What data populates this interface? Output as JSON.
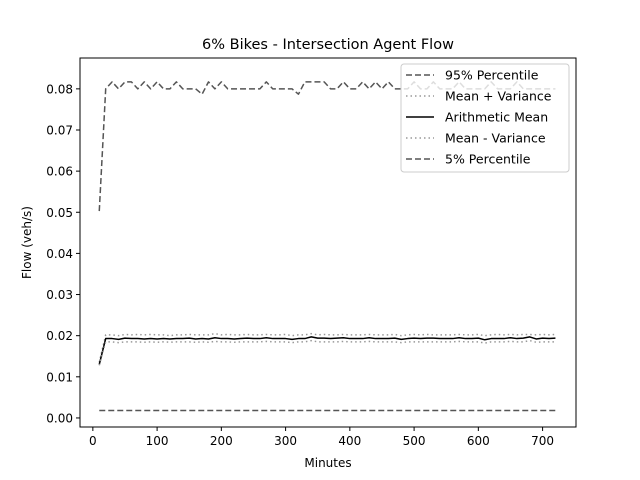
{
  "chart_data": {
    "type": "line",
    "title": "6% Bikes - Intersection Agent Flow",
    "xlabel": "Minutes",
    "ylabel": "Flow (veh/s)",
    "xlim": [
      -20,
      752
    ],
    "ylim": [
      -0.0022,
      0.0875
    ],
    "xticks": [
      0,
      100,
      200,
      300,
      400,
      500,
      600,
      700
    ],
    "xtick_labels": [
      "0",
      "100",
      "200",
      "300",
      "400",
      "500",
      "600",
      "700"
    ],
    "yticks": [
      0.0,
      0.01,
      0.02,
      0.03,
      0.04,
      0.05,
      0.06,
      0.07,
      0.08
    ],
    "ytick_labels": [
      "0.00",
      "0.01",
      "0.02",
      "0.03",
      "0.04",
      "0.05",
      "0.06",
      "0.07",
      "0.08"
    ],
    "grid": false,
    "legend_position": "top-right",
    "x": [
      10,
      20,
      30,
      40,
      50,
      60,
      70,
      80,
      90,
      100,
      110,
      120,
      130,
      140,
      150,
      160,
      170,
      180,
      190,
      200,
      210,
      220,
      230,
      240,
      250,
      260,
      270,
      280,
      290,
      300,
      310,
      320,
      330,
      340,
      350,
      360,
      370,
      380,
      390,
      400,
      410,
      420,
      430,
      440,
      450,
      460,
      470,
      480,
      490,
      500,
      510,
      520,
      530,
      540,
      550,
      560,
      570,
      580,
      590,
      600,
      610,
      620,
      630,
      640,
      650,
      660,
      670,
      680,
      690,
      700,
      710,
      720
    ],
    "series": [
      {
        "name": "95% Percentile",
        "style": "dashed",
        "color": "#555555",
        "values": [
          0.0503,
          0.08,
          0.0817,
          0.08,
          0.0817,
          0.0817,
          0.08,
          0.0817,
          0.08,
          0.0817,
          0.08,
          0.08,
          0.0817,
          0.08,
          0.08,
          0.08,
          0.0787,
          0.0817,
          0.08,
          0.0817,
          0.08,
          0.08,
          0.08,
          0.08,
          0.08,
          0.08,
          0.0817,
          0.08,
          0.08,
          0.08,
          0.08,
          0.0787,
          0.0817,
          0.0817,
          0.0817,
          0.0817,
          0.08,
          0.08,
          0.0817,
          0.08,
          0.08,
          0.0817,
          0.08,
          0.0817,
          0.08,
          0.0817,
          0.08,
          0.08,
          0.08,
          0.0817,
          0.08,
          0.08,
          0.0817,
          0.08,
          0.08,
          0.08,
          0.0817,
          0.08,
          0.08,
          0.08,
          0.08,
          0.0817,
          0.08,
          0.08,
          0.08,
          0.0817,
          0.08,
          0.08,
          0.08,
          0.08,
          0.08,
          0.08
        ]
      },
      {
        "name": "Mean + Variance",
        "style": "dotted",
        "color": "#999999",
        "values": [
          0.0135,
          0.0202,
          0.0202,
          0.02,
          0.0203,
          0.0202,
          0.0203,
          0.0202,
          0.0203,
          0.0202,
          0.0202,
          0.02,
          0.0202,
          0.0202,
          0.0203,
          0.0202,
          0.0202,
          0.0202,
          0.0205,
          0.0202,
          0.0203,
          0.0202,
          0.0202,
          0.0203,
          0.0202,
          0.0202,
          0.0203,
          0.0202,
          0.0202,
          0.0203,
          0.02,
          0.0202,
          0.0202,
          0.0205,
          0.0202,
          0.0203,
          0.0202,
          0.0202,
          0.0203,
          0.0202,
          0.0202,
          0.0202,
          0.0203,
          0.0202,
          0.0202,
          0.0202,
          0.0203,
          0.02,
          0.0202,
          0.0203,
          0.0202,
          0.0203,
          0.0202,
          0.0202,
          0.0202,
          0.0202,
          0.0203,
          0.0202,
          0.0202,
          0.0203,
          0.02,
          0.0202,
          0.0203,
          0.0202,
          0.0203,
          0.0202,
          0.0203,
          0.0203,
          0.0202,
          0.0203,
          0.0202,
          0.0203
        ]
      },
      {
        "name": "Arithmetic Mean",
        "style": "solid",
        "color": "#000000",
        "values": [
          0.013,
          0.0193,
          0.0193,
          0.0191,
          0.0194,
          0.0193,
          0.0193,
          0.0192,
          0.0193,
          0.0192,
          0.0193,
          0.0192,
          0.0193,
          0.0193,
          0.0194,
          0.0192,
          0.0193,
          0.0192,
          0.0195,
          0.0193,
          0.0193,
          0.0192,
          0.0193,
          0.0194,
          0.0193,
          0.0193,
          0.0195,
          0.0193,
          0.0193,
          0.0193,
          0.0191,
          0.0193,
          0.0193,
          0.0197,
          0.0194,
          0.0194,
          0.0193,
          0.0194,
          0.0195,
          0.0193,
          0.0193,
          0.0193,
          0.0195,
          0.0193,
          0.0193,
          0.0193,
          0.0194,
          0.0191,
          0.0193,
          0.0194,
          0.0193,
          0.0194,
          0.0194,
          0.0193,
          0.0193,
          0.0193,
          0.0195,
          0.0193,
          0.0193,
          0.0194,
          0.019,
          0.0193,
          0.0193,
          0.0193,
          0.0195,
          0.0193,
          0.0194,
          0.0197,
          0.0192,
          0.0194,
          0.0193,
          0.0194
        ]
      },
      {
        "name": "Mean - Variance",
        "style": "dotted",
        "color": "#999999",
        "values": [
          0.0128,
          0.0185,
          0.0185,
          0.0183,
          0.0185,
          0.0185,
          0.0185,
          0.0184,
          0.0185,
          0.0184,
          0.0185,
          0.0184,
          0.0185,
          0.0185,
          0.0185,
          0.0184,
          0.0185,
          0.0184,
          0.0186,
          0.0185,
          0.0185,
          0.0184,
          0.0185,
          0.0185,
          0.0185,
          0.0185,
          0.0186,
          0.0185,
          0.0185,
          0.0185,
          0.0183,
          0.0185,
          0.0185,
          0.0188,
          0.0185,
          0.0185,
          0.0185,
          0.0185,
          0.0186,
          0.0185,
          0.0185,
          0.0185,
          0.0186,
          0.0185,
          0.0185,
          0.0185,
          0.0185,
          0.0183,
          0.0185,
          0.0185,
          0.0185,
          0.0185,
          0.0185,
          0.0185,
          0.0185,
          0.0185,
          0.0186,
          0.0185,
          0.0185,
          0.0185,
          0.0182,
          0.0185,
          0.0185,
          0.0185,
          0.0186,
          0.0185,
          0.0185,
          0.0188,
          0.0184,
          0.0185,
          0.0185,
          0.0185
        ]
      },
      {
        "name": "5% Percentile",
        "style": "dashed",
        "color": "#555555",
        "values": [
          0.0018,
          0.0018,
          0.0018,
          0.0018,
          0.0018,
          0.0018,
          0.0018,
          0.0018,
          0.0018,
          0.0018,
          0.0018,
          0.0018,
          0.0018,
          0.0018,
          0.0018,
          0.0018,
          0.0018,
          0.0018,
          0.0018,
          0.0018,
          0.0018,
          0.0018,
          0.0018,
          0.0018,
          0.0018,
          0.0018,
          0.0018,
          0.0018,
          0.0018,
          0.0018,
          0.0018,
          0.0018,
          0.0018,
          0.0018,
          0.0018,
          0.0018,
          0.0018,
          0.0018,
          0.0018,
          0.0018,
          0.0018,
          0.0018,
          0.0018,
          0.0018,
          0.0018,
          0.0018,
          0.0018,
          0.0018,
          0.0018,
          0.0018,
          0.0018,
          0.0018,
          0.0018,
          0.0018,
          0.0018,
          0.0018,
          0.0018,
          0.0018,
          0.0018,
          0.0018,
          0.0018,
          0.0018,
          0.0018,
          0.0018,
          0.0018,
          0.0018,
          0.0018,
          0.0018,
          0.0018,
          0.0018,
          0.0018,
          0.0018
        ]
      }
    ]
  }
}
